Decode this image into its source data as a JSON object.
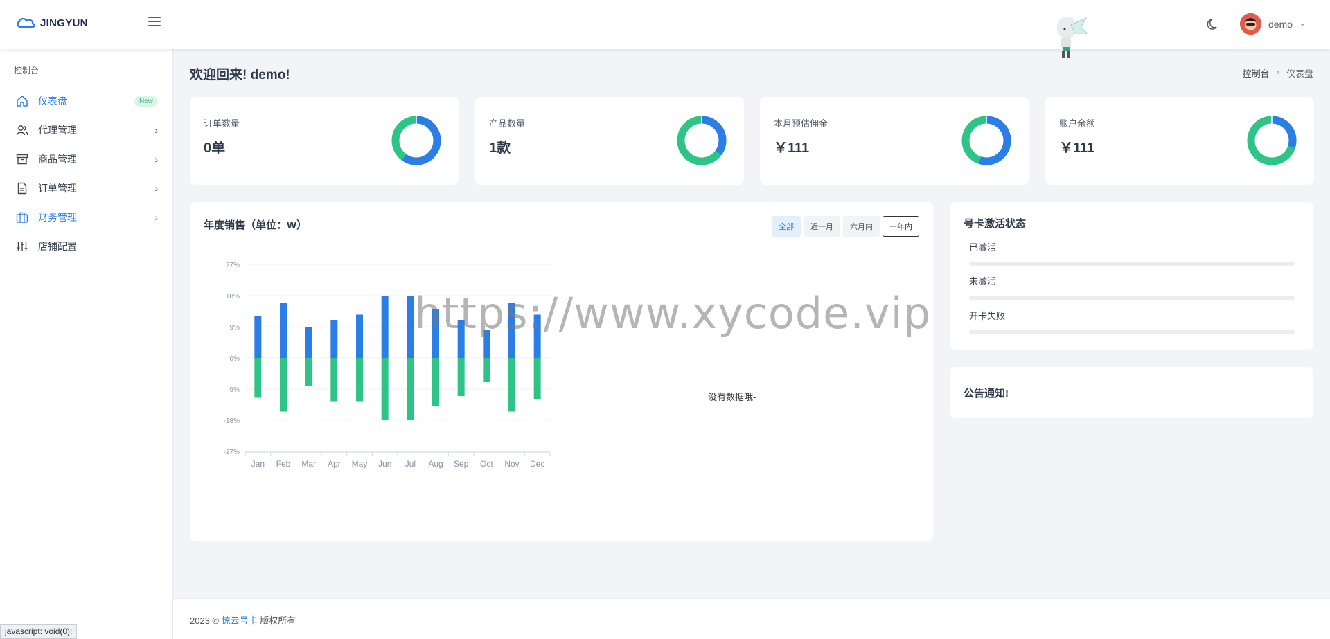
{
  "header": {
    "logo_text": "JINGYUN",
    "user_name": "demo"
  },
  "sidebar": {
    "heading": "控制台",
    "items": [
      {
        "label": "仪表盘",
        "badge": "New",
        "icon": "home-icon"
      },
      {
        "label": "代理管理",
        "icon": "users-icon"
      },
      {
        "label": "商品管理",
        "icon": "archive-icon"
      },
      {
        "label": "订单管理",
        "icon": "document-icon"
      },
      {
        "label": "财务管理",
        "icon": "briefcase-icon"
      },
      {
        "label": "店铺配置",
        "icon": "sliders-icon"
      }
    ]
  },
  "page": {
    "title": "欢迎回来! demo!",
    "breadcrumb": [
      "控制台",
      "仪表盘"
    ]
  },
  "stats": [
    {
      "label": "订单数量",
      "value": "0单",
      "donut_fraction": 0.6
    },
    {
      "label": "产品数量",
      "value": "1款",
      "donut_fraction": 0.35
    },
    {
      "label": "本月预估佣金",
      "value": "￥111",
      "donut_fraction": 0.55
    },
    {
      "label": "账户余额",
      "value": "￥111",
      "donut_fraction": 0.3
    }
  ],
  "colors": {
    "primary": "#2a7ee5",
    "blue_series": "#2a7ee5",
    "green_series": "#2fc487"
  },
  "sales": {
    "title": "年度销售（单位：W）",
    "tabs": [
      "全部",
      "近一月",
      "六月内",
      "一年内"
    ],
    "nodata": "没有数据哦-"
  },
  "chart_data": {
    "type": "bar",
    "categories": [
      "Jan",
      "Feb",
      "Mar",
      "Apr",
      "May",
      "Jun",
      "Jul",
      "Aug",
      "Sep",
      "Oct",
      "Nov",
      "Dec"
    ],
    "series": [
      {
        "values": [
          12,
          16,
          9,
          11,
          12.5,
          18,
          18,
          14,
          11,
          8,
          16,
          12.5
        ]
      },
      {
        "values": [
          -11.5,
          -15.5,
          -8,
          -12.5,
          -12.5,
          -18,
          -18,
          -14,
          -11,
          -7,
          -15.5,
          -12
        ]
      }
    ],
    "yticks": [
      "27%",
      "18%",
      "9%",
      "0%",
      "-9%",
      "-18%",
      "-27%"
    ],
    "ylim": [
      -27,
      27
    ],
    "stacked": true,
    "grid": true
  },
  "card_status": {
    "title": "号卡激活状态",
    "items": [
      {
        "label": "已激活",
        "value": 0
      },
      {
        "label": "未激活",
        "value": 0
      },
      {
        "label": "开卡失败",
        "value": 0
      }
    ]
  },
  "notice": {
    "title": "公告通知!"
  },
  "footer": {
    "prefix": "2023 © ",
    "link": "惊云号卡",
    "suffix": " 版权所有"
  },
  "watermark": "https://www.xycode.vip",
  "browser_status": "javascript: void(0);"
}
